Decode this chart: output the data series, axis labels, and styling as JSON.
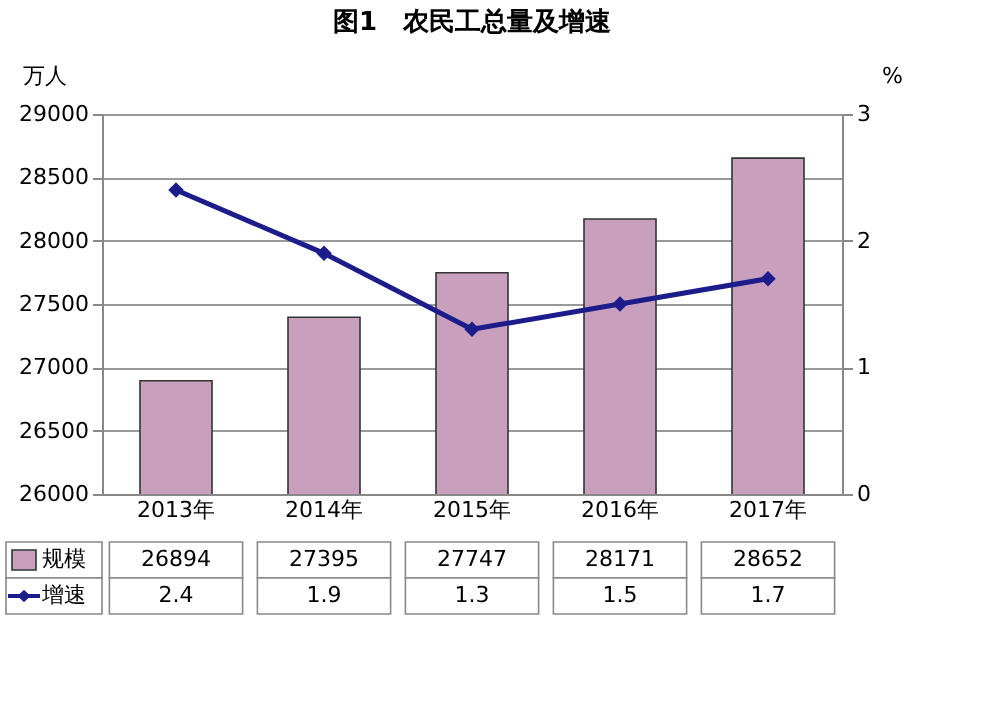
{
  "chart_data": {
    "type": "bar",
    "title": "图1　农民工总量及增速",
    "ylabel": "万人",
    "y2label": "%",
    "categories": [
      "2013年",
      "2014年",
      "2015年",
      "2016年",
      "2017年"
    ],
    "series": [
      {
        "name": "规模",
        "color": "#c8a0be",
        "values": [
          26894,
          27395,
          27747,
          28171,
          28652
        ]
      },
      {
        "name": "增速",
        "type": "line",
        "axis": "y2",
        "color": "#1c1c8a",
        "values": [
          2.4,
          1.9,
          1.3,
          1.5,
          1.7
        ]
      }
    ],
    "ylim": [
      26000,
      29000
    ],
    "yticks": [
      26000,
      26500,
      27000,
      27500,
      28000,
      28500,
      29000
    ],
    "y2lim": [
      0,
      3
    ],
    "y2ticks": [
      0,
      1,
      2,
      3
    ],
    "grid": "y",
    "legend": "bottom",
    "marker": "diamond",
    "data_labels": true
  }
}
